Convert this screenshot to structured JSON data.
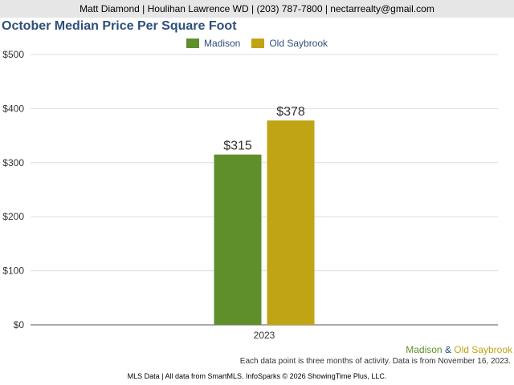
{
  "header": {
    "contact": "Matt Diamond | Houlihan Lawrence WD | (203) 787-7800 | nectarrealty@gmail.com"
  },
  "colors": {
    "madison": "#5f8f2b",
    "old_saybrook": "#c1a414",
    "title": "#2e4f7a",
    "grid": "#dddddd",
    "axis": "#555555"
  },
  "chart_data": {
    "type": "bar",
    "title": "October Median Price Per Square Foot",
    "categories": [
      "2023"
    ],
    "series": [
      {
        "name": "Madison",
        "values": [
          315
        ],
        "labels": [
          "$315"
        ]
      },
      {
        "name": "Old Saybrook",
        "values": [
          378
        ],
        "labels": [
          "$378"
        ]
      }
    ],
    "yticks": [
      0,
      100,
      200,
      300,
      400,
      500
    ],
    "ytick_labels": [
      "$0",
      "$100",
      "$200",
      "$300",
      "$400",
      "$500"
    ],
    "ylim": [
      0,
      500
    ],
    "grid": true,
    "legend": "top-center"
  },
  "footer": {
    "series_a": "Madison",
    "amp": "&",
    "series_b": "Old Saybrook",
    "note": "Each data point is three months of activity. Data is from November 16, 2023.",
    "credit": "MLS Data | All data from SmartMLS. InfoSparks © 2026 ShowingTime Plus, LLC."
  }
}
